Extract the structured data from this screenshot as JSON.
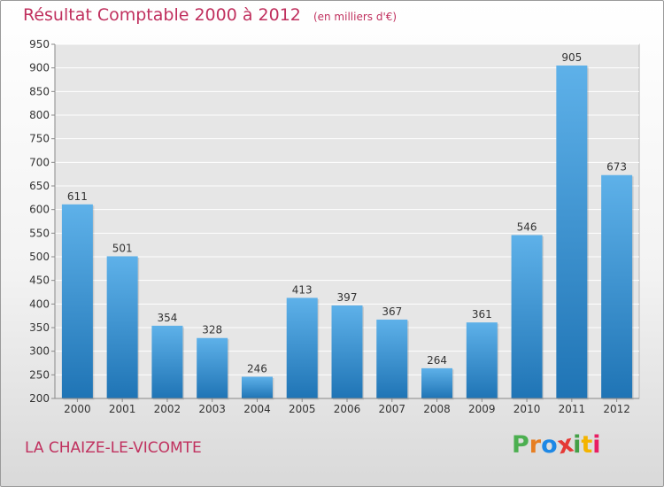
{
  "title": "Résultat Comptable 2000 à 2012",
  "subtitle": "(en milliers d'€)",
  "commune": "LA CHAIZE-LE-VICOMTE",
  "logo": {
    "letters": [
      "P",
      "r",
      "o",
      "x",
      "i",
      "t",
      "i"
    ],
    "colors": [
      "#4caf50",
      "#e67e22",
      "#1e88e5",
      "#e53935",
      "#43a047",
      "#f4b400",
      "#e91e63"
    ]
  },
  "colors": {
    "bar_top": "#5eb1e9",
    "bar_bottom": "#1f74b5",
    "title": "#c0305e"
  },
  "chart_data": {
    "type": "bar",
    "categories": [
      "2000",
      "2001",
      "2002",
      "2003",
      "2004",
      "2005",
      "2006",
      "2007",
      "2008",
      "2009",
      "2010",
      "2011",
      "2012"
    ],
    "values": [
      611,
      501,
      354,
      328,
      246,
      413,
      397,
      367,
      264,
      361,
      546,
      905,
      673
    ],
    "ylim": [
      200,
      950
    ],
    "yticks": [
      200,
      250,
      300,
      350,
      400,
      450,
      500,
      550,
      600,
      650,
      700,
      750,
      800,
      850,
      900,
      950
    ],
    "grid": true
  }
}
